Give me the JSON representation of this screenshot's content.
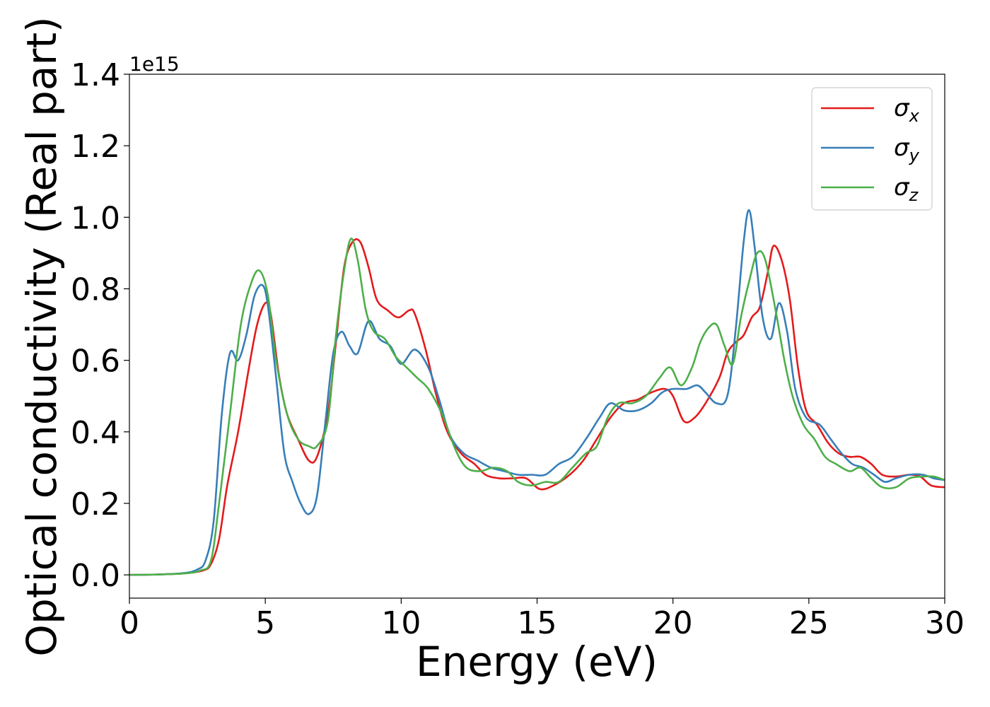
{
  "chart_data": {
    "type": "line",
    "title": "",
    "xlabel": "Energy (eV)",
    "ylabel": "Optical conductivity (Real part)",
    "y_offset_label": "1e15",
    "xlim": [
      0,
      30
    ],
    "ylim": [
      -0.065,
      1.4
    ],
    "xticks": [
      0,
      5,
      10,
      15,
      20,
      25,
      30
    ],
    "xtick_labels": [
      "0",
      "5",
      "10",
      "15",
      "20",
      "25",
      "30"
    ],
    "yticks": [
      0.0,
      0.2,
      0.4,
      0.6,
      0.8,
      1.0,
      1.2,
      1.4
    ],
    "ytick_labels": [
      "0.0",
      "0.2",
      "0.4",
      "0.6",
      "0.8",
      "1.0",
      "1.2",
      "1.4"
    ],
    "grid": false,
    "legend_position": "top-right",
    "series": [
      {
        "name": "σ",
        "subscript": "x",
        "color": "#e41a1c",
        "points": [
          [
            0,
            0
          ],
          [
            1,
            0.001
          ],
          [
            2,
            0.004
          ],
          [
            2.7,
            0.012
          ],
          [
            3.0,
            0.03
          ],
          [
            3.3,
            0.1
          ],
          [
            3.6,
            0.25
          ],
          [
            4.0,
            0.4
          ],
          [
            4.4,
            0.58
          ],
          [
            4.7,
            0.7
          ],
          [
            5.0,
            0.76
          ],
          [
            5.2,
            0.73
          ],
          [
            5.5,
            0.56
          ],
          [
            5.8,
            0.45
          ],
          [
            6.2,
            0.38
          ],
          [
            6.6,
            0.32
          ],
          [
            6.9,
            0.33
          ],
          [
            7.3,
            0.45
          ],
          [
            7.6,
            0.65
          ],
          [
            7.9,
            0.86
          ],
          [
            8.2,
            0.93
          ],
          [
            8.5,
            0.93
          ],
          [
            8.8,
            0.86
          ],
          [
            9.1,
            0.77
          ],
          [
            9.5,
            0.74
          ],
          [
            9.9,
            0.72
          ],
          [
            10.3,
            0.74
          ],
          [
            10.5,
            0.73
          ],
          [
            10.9,
            0.63
          ],
          [
            11.3,
            0.5
          ],
          [
            11.7,
            0.4
          ],
          [
            12.2,
            0.34
          ],
          [
            12.7,
            0.31
          ],
          [
            13.1,
            0.28
          ],
          [
            13.6,
            0.27
          ],
          [
            14.1,
            0.27
          ],
          [
            14.6,
            0.27
          ],
          [
            15.1,
            0.24
          ],
          [
            15.6,
            0.25
          ],
          [
            16.2,
            0.28
          ],
          [
            16.7,
            0.32
          ],
          [
            17.2,
            0.38
          ],
          [
            17.7,
            0.44
          ],
          [
            18.2,
            0.48
          ],
          [
            18.7,
            0.49
          ],
          [
            19.2,
            0.51
          ],
          [
            19.7,
            0.52
          ],
          [
            20.0,
            0.5
          ],
          [
            20.4,
            0.43
          ],
          [
            20.8,
            0.44
          ],
          [
            21.2,
            0.48
          ],
          [
            21.7,
            0.55
          ],
          [
            22.0,
            0.62
          ],
          [
            22.3,
            0.65
          ],
          [
            22.6,
            0.67
          ],
          [
            22.9,
            0.72
          ],
          [
            23.2,
            0.75
          ],
          [
            23.5,
            0.85
          ],
          [
            23.7,
            0.92
          ],
          [
            24.0,
            0.88
          ],
          [
            24.3,
            0.77
          ],
          [
            24.6,
            0.58
          ],
          [
            24.9,
            0.46
          ],
          [
            25.3,
            0.42
          ],
          [
            25.7,
            0.37
          ],
          [
            26.1,
            0.34
          ],
          [
            26.5,
            0.33
          ],
          [
            26.9,
            0.33
          ],
          [
            27.3,
            0.31
          ],
          [
            27.7,
            0.28
          ],
          [
            28.2,
            0.275
          ],
          [
            28.7,
            0.28
          ],
          [
            29.1,
            0.275
          ],
          [
            29.5,
            0.25
          ],
          [
            30,
            0.245
          ]
        ]
      },
      {
        "name": "σ",
        "subscript": "y",
        "color": "#377eb8",
        "points": [
          [
            0,
            0
          ],
          [
            1,
            0.001
          ],
          [
            2,
            0.005
          ],
          [
            2.5,
            0.015
          ],
          [
            2.8,
            0.04
          ],
          [
            3.1,
            0.15
          ],
          [
            3.4,
            0.45
          ],
          [
            3.7,
            0.62
          ],
          [
            4.0,
            0.6
          ],
          [
            4.3,
            0.67
          ],
          [
            4.6,
            0.78
          ],
          [
            4.9,
            0.81
          ],
          [
            5.1,
            0.75
          ],
          [
            5.4,
            0.55
          ],
          [
            5.7,
            0.34
          ],
          [
            6.0,
            0.26
          ],
          [
            6.3,
            0.2
          ],
          [
            6.6,
            0.17
          ],
          [
            6.9,
            0.22
          ],
          [
            7.2,
            0.42
          ],
          [
            7.5,
            0.62
          ],
          [
            7.8,
            0.68
          ],
          [
            8.1,
            0.64
          ],
          [
            8.4,
            0.62
          ],
          [
            8.8,
            0.71
          ],
          [
            9.2,
            0.66
          ],
          [
            9.6,
            0.64
          ],
          [
            10.0,
            0.59
          ],
          [
            10.5,
            0.63
          ],
          [
            11.0,
            0.58
          ],
          [
            11.4,
            0.49
          ],
          [
            11.8,
            0.39
          ],
          [
            12.3,
            0.34
          ],
          [
            12.8,
            0.32
          ],
          [
            13.3,
            0.3
          ],
          [
            13.8,
            0.29
          ],
          [
            14.3,
            0.28
          ],
          [
            14.8,
            0.28
          ],
          [
            15.3,
            0.28
          ],
          [
            15.8,
            0.31
          ],
          [
            16.3,
            0.33
          ],
          [
            16.8,
            0.38
          ],
          [
            17.3,
            0.44
          ],
          [
            17.7,
            0.48
          ],
          [
            18.2,
            0.46
          ],
          [
            18.7,
            0.46
          ],
          [
            19.2,
            0.48
          ],
          [
            19.6,
            0.51
          ],
          [
            20.0,
            0.52
          ],
          [
            20.5,
            0.52
          ],
          [
            20.9,
            0.53
          ],
          [
            21.2,
            0.51
          ],
          [
            21.6,
            0.48
          ],
          [
            22.0,
            0.5
          ],
          [
            22.3,
            0.68
          ],
          [
            22.6,
            0.93
          ],
          [
            22.8,
            1.02
          ],
          [
            23.0,
            0.92
          ],
          [
            23.3,
            0.72
          ],
          [
            23.6,
            0.66
          ],
          [
            23.9,
            0.76
          ],
          [
            24.2,
            0.68
          ],
          [
            24.5,
            0.52
          ],
          [
            24.9,
            0.44
          ],
          [
            25.4,
            0.42
          ],
          [
            25.8,
            0.38
          ],
          [
            26.2,
            0.34
          ],
          [
            26.6,
            0.31
          ],
          [
            27.0,
            0.3
          ],
          [
            27.4,
            0.28
          ],
          [
            27.8,
            0.26
          ],
          [
            28.2,
            0.27
          ],
          [
            28.7,
            0.28
          ],
          [
            29.2,
            0.28
          ],
          [
            29.6,
            0.27
          ],
          [
            30,
            0.265
          ]
        ]
      },
      {
        "name": "σ",
        "subscript": "z",
        "color": "#4daf4a",
        "points": [
          [
            0,
            0
          ],
          [
            1,
            0.001
          ],
          [
            2,
            0.004
          ],
          [
            2.6,
            0.012
          ],
          [
            3.0,
            0.04
          ],
          [
            3.3,
            0.2
          ],
          [
            3.7,
            0.45
          ],
          [
            4.1,
            0.7
          ],
          [
            4.5,
            0.82
          ],
          [
            4.8,
            0.85
          ],
          [
            5.1,
            0.78
          ],
          [
            5.4,
            0.6
          ],
          [
            5.8,
            0.45
          ],
          [
            6.2,
            0.38
          ],
          [
            6.6,
            0.36
          ],
          [
            6.9,
            0.36
          ],
          [
            7.3,
            0.43
          ],
          [
            7.6,
            0.67
          ],
          [
            7.9,
            0.85
          ],
          [
            8.15,
            0.94
          ],
          [
            8.4,
            0.88
          ],
          [
            8.7,
            0.74
          ],
          [
            9.0,
            0.68
          ],
          [
            9.4,
            0.66
          ],
          [
            9.8,
            0.61
          ],
          [
            10.2,
            0.58
          ],
          [
            10.6,
            0.55
          ],
          [
            11.0,
            0.52
          ],
          [
            11.5,
            0.45
          ],
          [
            12.0,
            0.35
          ],
          [
            12.4,
            0.3
          ],
          [
            12.9,
            0.29
          ],
          [
            13.4,
            0.3
          ],
          [
            13.9,
            0.29
          ],
          [
            14.3,
            0.26
          ],
          [
            14.8,
            0.25
          ],
          [
            15.3,
            0.26
          ],
          [
            15.8,
            0.26
          ],
          [
            16.3,
            0.3
          ],
          [
            16.8,
            0.34
          ],
          [
            17.2,
            0.36
          ],
          [
            17.6,
            0.44
          ],
          [
            18.0,
            0.48
          ],
          [
            18.5,
            0.48
          ],
          [
            19.0,
            0.5
          ],
          [
            19.5,
            0.55
          ],
          [
            19.9,
            0.58
          ],
          [
            20.3,
            0.53
          ],
          [
            20.7,
            0.58
          ],
          [
            21.0,
            0.65
          ],
          [
            21.3,
            0.69
          ],
          [
            21.6,
            0.7
          ],
          [
            21.9,
            0.64
          ],
          [
            22.2,
            0.59
          ],
          [
            22.5,
            0.72
          ],
          [
            22.8,
            0.82
          ],
          [
            23.1,
            0.9
          ],
          [
            23.4,
            0.88
          ],
          [
            23.8,
            0.73
          ],
          [
            24.1,
            0.6
          ],
          [
            24.4,
            0.5
          ],
          [
            24.8,
            0.42
          ],
          [
            25.2,
            0.38
          ],
          [
            25.6,
            0.33
          ],
          [
            26.0,
            0.31
          ],
          [
            26.5,
            0.29
          ],
          [
            26.9,
            0.3
          ],
          [
            27.3,
            0.27
          ],
          [
            27.7,
            0.245
          ],
          [
            28.2,
            0.245
          ],
          [
            28.7,
            0.27
          ],
          [
            29.2,
            0.275
          ],
          [
            29.6,
            0.275
          ],
          [
            30,
            0.265
          ]
        ]
      }
    ]
  }
}
